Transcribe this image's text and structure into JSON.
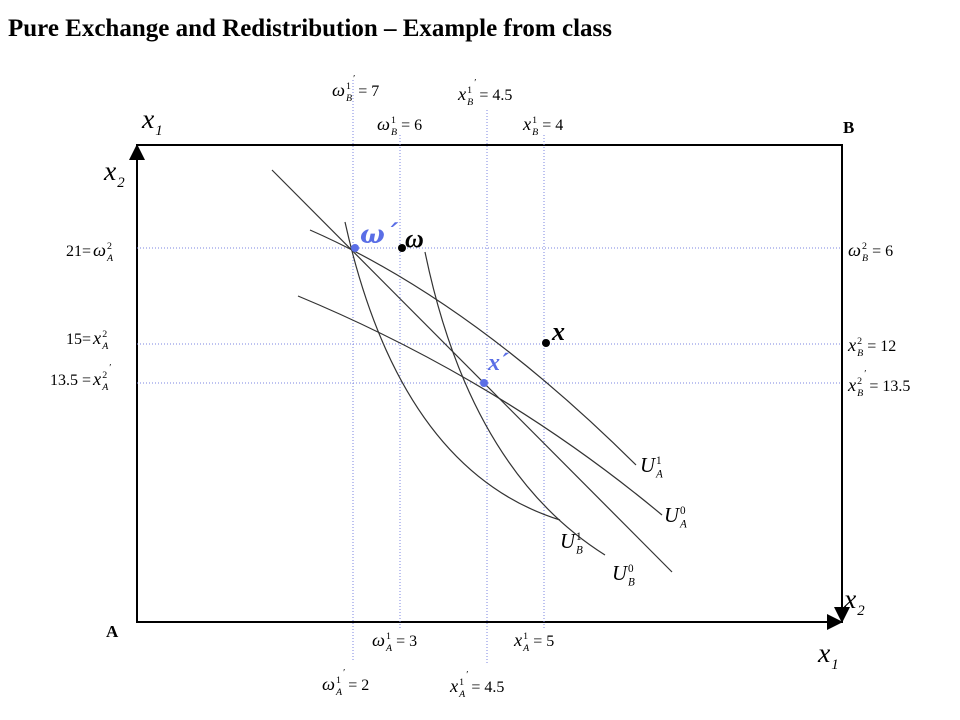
{
  "title": "Pure Exchange and Redistribution – Example from class",
  "corners": {
    "a": "A",
    "b": "B"
  },
  "axis_labels": [
    {
      "base": "x",
      "sub": "1"
    },
    {
      "base": "x",
      "sub": "2"
    },
    {
      "base": "x",
      "sub": "2"
    },
    {
      "base": "x",
      "sub": "1"
    }
  ],
  "guide_labels": [
    {
      "base": "ω",
      "sub": "B",
      "sup": "1",
      "prime": "′",
      "rhs": "= 7"
    },
    {
      "base": "x",
      "sub": "B",
      "sup": "1",
      "prime": "′",
      "rhs": "= 4.5"
    },
    {
      "base": "ω",
      "sub": "B",
      "sup": "1",
      "rhs": "= 6"
    },
    {
      "base": "x",
      "sub": "B",
      "sup": "1",
      "rhs": "= 4"
    },
    {
      "base": "ω",
      "sub": "A",
      "sup": "1",
      "rhs": "= 3"
    },
    {
      "base": "x",
      "sub": "A",
      "sup": "1",
      "rhs": "= 5"
    },
    {
      "base": "ω",
      "sub": "A",
      "sup": "1",
      "prime": "′",
      "rhs": "= 2"
    },
    {
      "base": "x",
      "sub": "A",
      "sup": "1",
      "prime": "′",
      "rhs": "= 4.5"
    },
    {
      "lhs": "21=",
      "base": "ω",
      "sub": "A",
      "sup": "2"
    },
    {
      "lhs": "15=",
      "base": "x",
      "sub": "A",
      "sup": "2"
    },
    {
      "lhs": "13.5 =",
      "base": "x",
      "sub": "A",
      "sup": "2",
      "prime": "′"
    },
    {
      "base": "ω",
      "sub": "B",
      "sup": "2",
      "rhs": "= 6"
    },
    {
      "base": "x",
      "sub": "B",
      "sup": "2",
      "rhs": "= 12"
    },
    {
      "base": "x",
      "sub": "B",
      "sup": "2",
      "prime": "′",
      "rhs": "= 13.5"
    }
  ],
  "points": [
    {
      "label": "ω´"
    },
    {
      "label": "ω"
    },
    {
      "label": "x"
    },
    {
      "label": "x´"
    }
  ],
  "curve_labels": [
    {
      "base": "U",
      "sub": "A",
      "sup": "1"
    },
    {
      "base": "U",
      "sub": "A",
      "sup": "0"
    },
    {
      "base": "U",
      "sub": "B",
      "sup": "1"
    },
    {
      "base": "U",
      "sub": "B",
      "sup": "0"
    }
  ]
}
